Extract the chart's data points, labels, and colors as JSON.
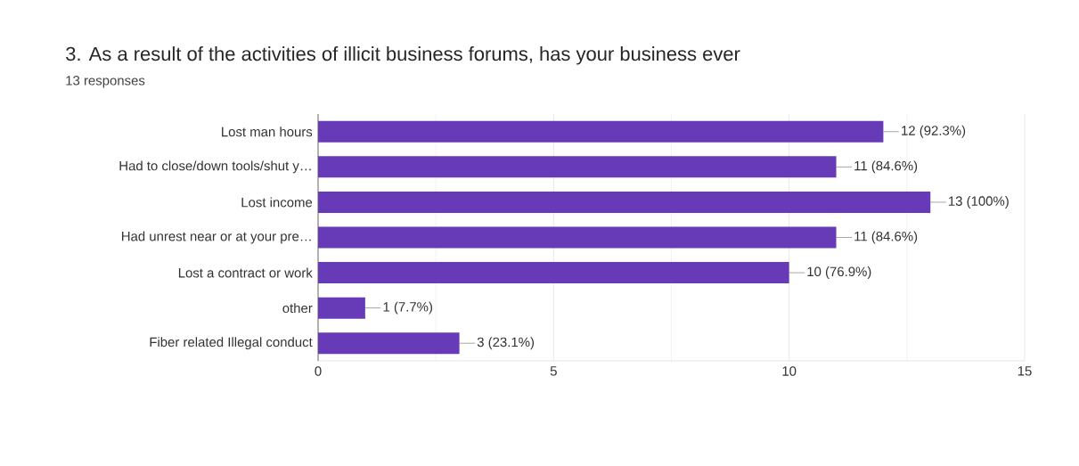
{
  "chart_data": {
    "type": "bar",
    "orientation": "horizontal",
    "title": "3. As a result of the activities of illicit business forums, has your business ever",
    "subtitle": "13 responses",
    "categories": [
      "Lost man hours",
      "Had to close/down tools/shut y…",
      "Lost income",
      "Had unrest near or at your pre…",
      "Lost a contract or work",
      "other",
      "Fiber related Illegal conduct"
    ],
    "values": [
      12,
      11,
      13,
      11,
      10,
      1,
      3
    ],
    "value_labels": [
      "12 (92.3%)",
      "11 (84.6%)",
      "13 (100%)",
      "11 (84.6%)",
      "10 (76.9%)",
      "1 (7.7%)",
      "3 (23.1%)"
    ],
    "color": "#673ab7",
    "xlim": [
      0,
      15
    ],
    "xticks": [
      0,
      5,
      10,
      15
    ],
    "grid": "x"
  }
}
